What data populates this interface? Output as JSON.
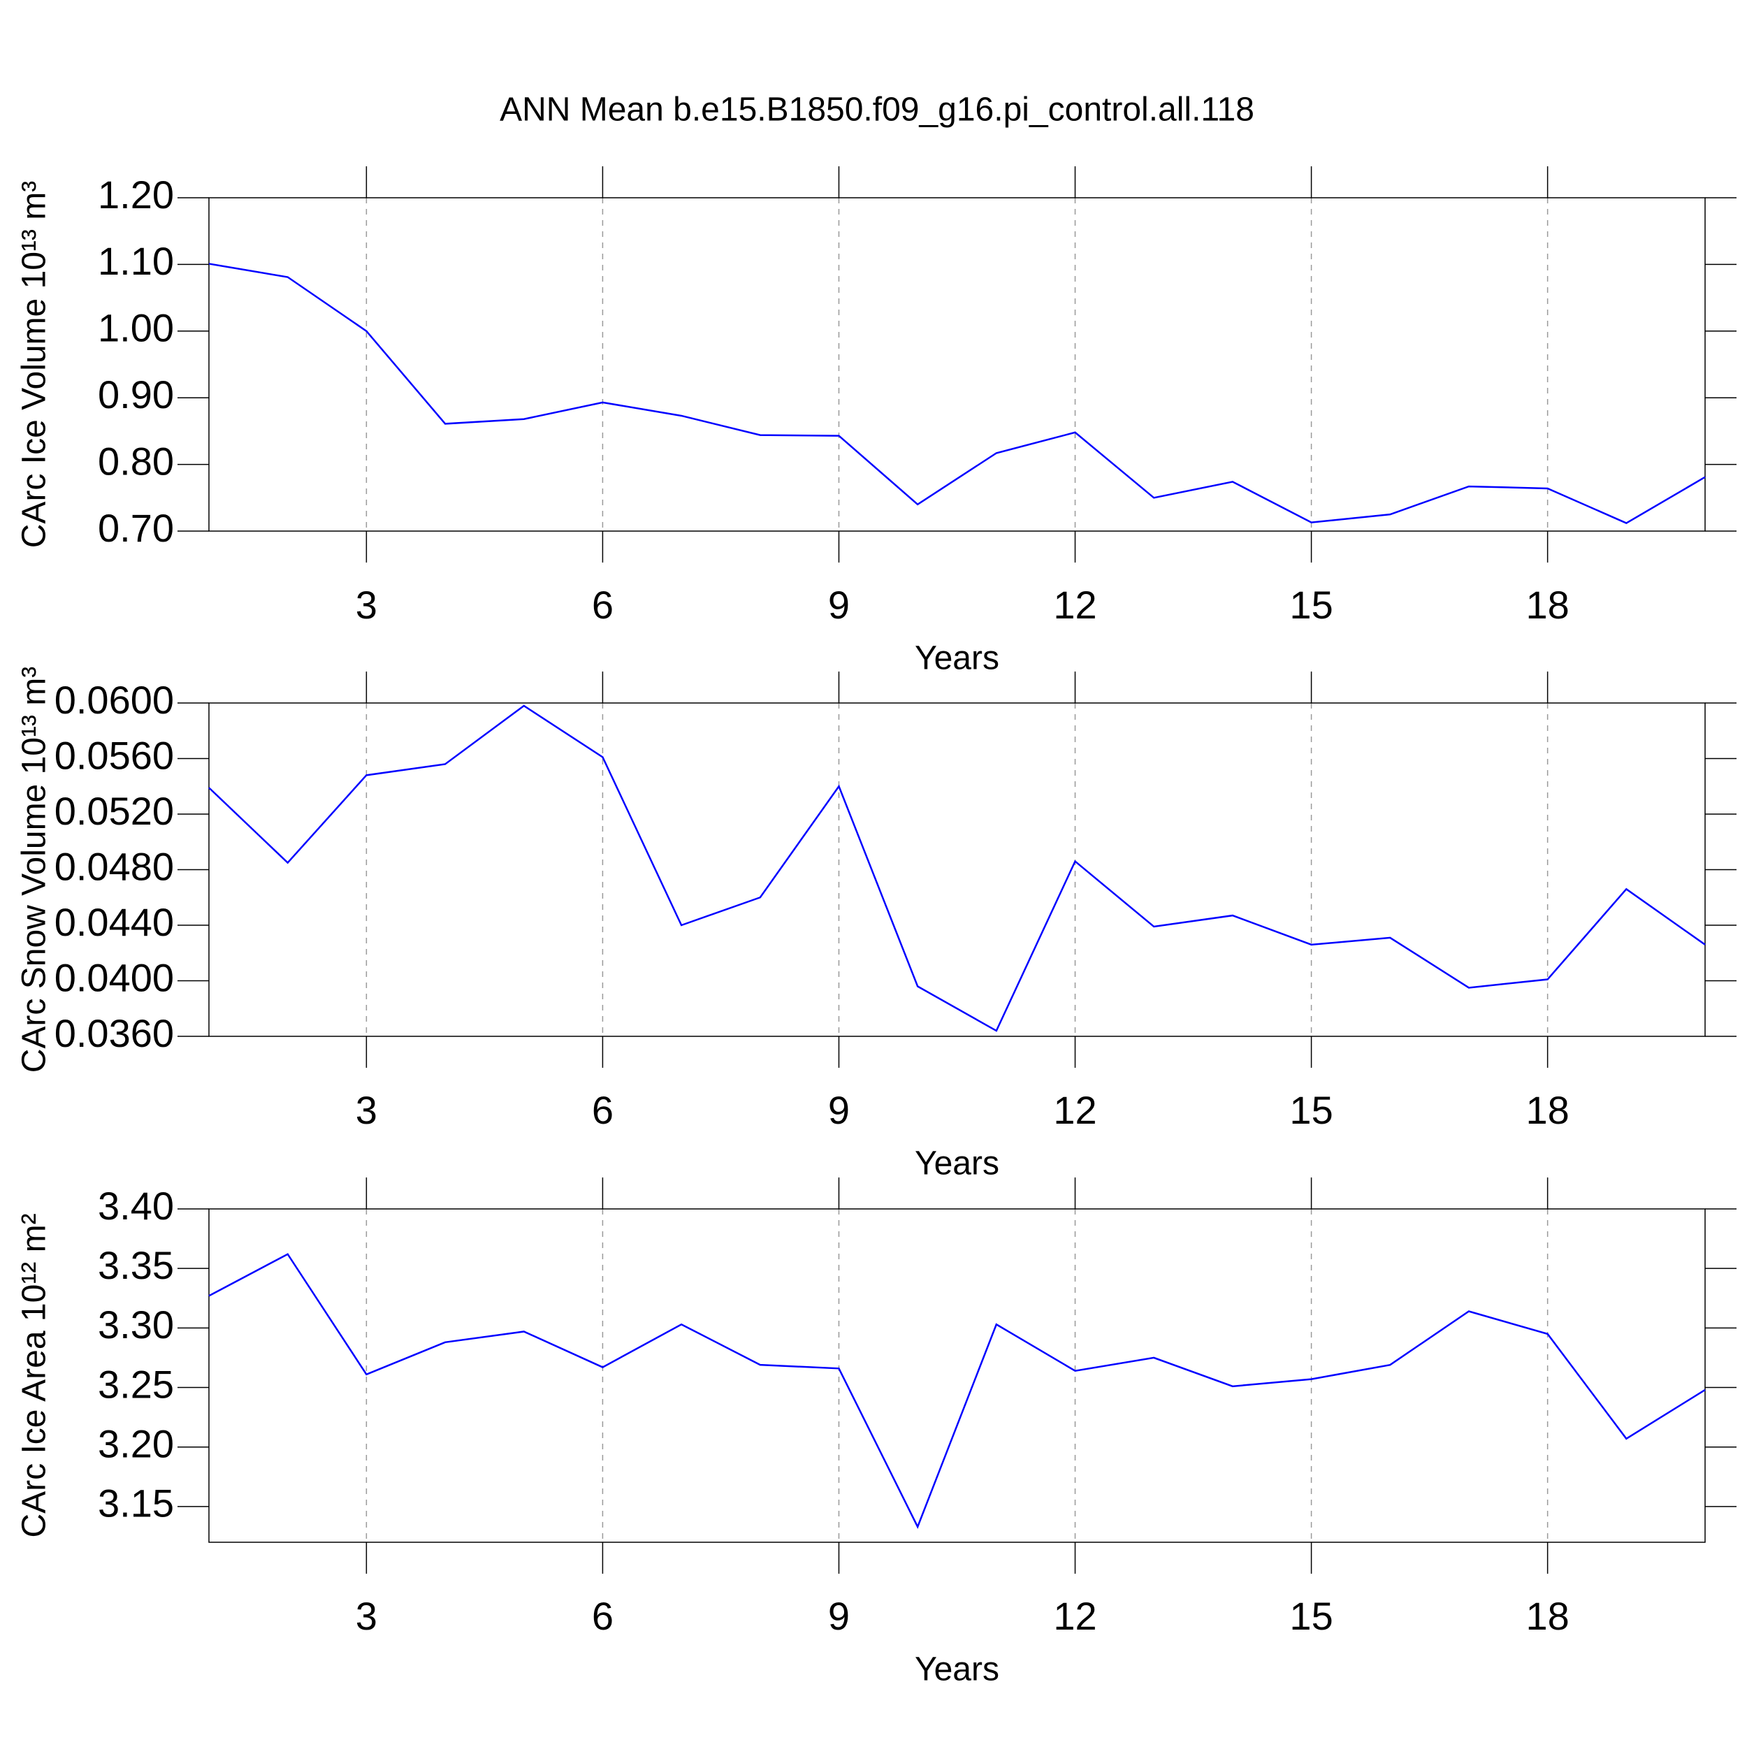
{
  "chart_data": [
    {
      "type": "line",
      "title": "ANN Mean b.e15.B1850.f09_g16.pi_control.all.118",
      "xlabel": "Years",
      "ylabel": "CArc Ice Volume 10¹³ m³",
      "x": [
        1,
        2,
        3,
        4,
        5,
        6,
        7,
        8,
        9,
        10,
        11,
        12,
        13,
        14,
        15,
        16,
        17,
        18,
        19,
        20
      ],
      "series": [
        {
          "color": "#0000ff",
          "values": [
            1.101,
            1.081,
            1.0,
            0.861,
            0.868,
            0.893,
            0.873,
            0.844,
            0.843,
            0.74,
            0.817,
            0.848,
            0.75,
            0.774,
            0.713,
            0.725,
            0.767,
            0.764,
            0.712,
            0.781
          ]
        }
      ],
      "xlim": [
        1,
        20
      ],
      "xticks": [
        3,
        6,
        9,
        12,
        15,
        18
      ],
      "ylim": [
        0.7,
        1.2
      ],
      "yticks": [
        {
          "value": 0.7,
          "label": "0.70"
        },
        {
          "value": 0.8,
          "label": "0.80"
        },
        {
          "value": 0.9,
          "label": "0.90"
        },
        {
          "value": 1.0,
          "label": "1.00"
        },
        {
          "value": 1.1,
          "label": "1.10"
        },
        {
          "value": 1.2,
          "label": "1.20"
        }
      ],
      "grid": true
    },
    {
      "type": "line",
      "xlabel": "Years",
      "ylabel": "CArc Snow Volume 10¹³ m³",
      "x": [
        1,
        2,
        3,
        4,
        5,
        6,
        7,
        8,
        9,
        10,
        11,
        12,
        13,
        14,
        15,
        16,
        17,
        18,
        19,
        20
      ],
      "series": [
        {
          "color": "#0000ff",
          "values": [
            0.0539,
            0.0485,
            0.0548,
            0.0556,
            0.0598,
            0.0561,
            0.044,
            0.046,
            0.054,
            0.0396,
            0.0364,
            0.0486,
            0.0439,
            0.0447,
            0.0426,
            0.0431,
            0.0395,
            0.0401,
            0.0466,
            0.0426
          ]
        }
      ],
      "xlim": [
        1,
        20
      ],
      "xticks": [
        3,
        6,
        9,
        12,
        15,
        18
      ],
      "ylim": [
        0.036,
        0.06
      ],
      "yticks": [
        {
          "value": 0.036,
          "label": "0.0360"
        },
        {
          "value": 0.04,
          "label": "0.0400"
        },
        {
          "value": 0.044,
          "label": "0.0440"
        },
        {
          "value": 0.048,
          "label": "0.0480"
        },
        {
          "value": 0.052,
          "label": "0.0520"
        },
        {
          "value": 0.056,
          "label": "0.0560"
        },
        {
          "value": 0.06,
          "label": "0.0600"
        }
      ],
      "grid": true
    },
    {
      "type": "line",
      "xlabel": "Years",
      "ylabel": "CArc Ice Area 10¹² m²",
      "x": [
        1,
        2,
        3,
        4,
        5,
        6,
        7,
        8,
        9,
        10,
        11,
        12,
        13,
        14,
        15,
        16,
        17,
        18,
        19,
        20
      ],
      "series": [
        {
          "color": "#0000ff",
          "values": [
            3.327,
            3.362,
            3.261,
            3.288,
            3.297,
            3.267,
            3.303,
            3.269,
            3.266,
            3.133,
            3.303,
            3.264,
            3.275,
            3.251,
            3.257,
            3.269,
            3.314,
            3.295,
            3.207,
            3.248
          ]
        }
      ],
      "xlim": [
        1,
        20
      ],
      "xticks": [
        3,
        6,
        9,
        12,
        15,
        18
      ],
      "ylim": [
        3.12,
        3.4
      ],
      "yticks": [
        3.15,
        {
          "value": 3.2,
          "label": "3.20"
        },
        3.25,
        {
          "value": 3.3,
          "label": "3.30"
        },
        3.35,
        {
          "value": 3.4,
          "label": "3.40"
        }
      ],
      "grid": true
    }
  ]
}
